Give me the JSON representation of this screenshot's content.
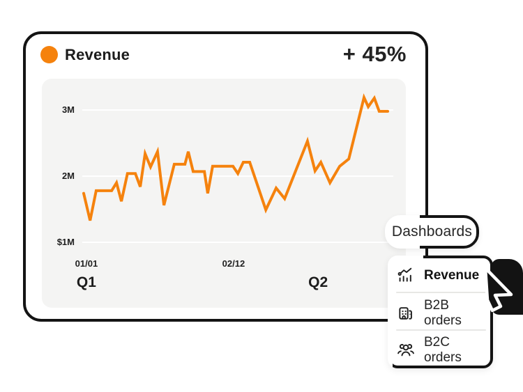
{
  "header": {
    "title": "Revenue",
    "delta": "+ 45%"
  },
  "colors": {
    "accent": "#F5820D",
    "ink": "#1a1a1a",
    "panel": "#f4f4f3",
    "gridline": "#ffffff",
    "card_border": "#141414",
    "separator": "#e7e7e5"
  },
  "chart_data": {
    "type": "line",
    "title": "Revenue",
    "unit": "millions USD",
    "grid": "horizontal only",
    "legend": "none",
    "ylim": [
      1,
      3.3
    ],
    "y_ticks": [
      {
        "label": "3M",
        "value": 3
      },
      {
        "label": "2M",
        "value": 2
      },
      {
        "label": "$1M",
        "value": 1
      }
    ],
    "x_ticks": [
      {
        "label": "01/01",
        "f": 0.009
      },
      {
        "label": "02/12",
        "f": 0.493
      }
    ],
    "quarter_labels": [
      {
        "label": "Q1",
        "f": 0.009
      },
      {
        "label": "Q2",
        "f": 0.771
      }
    ],
    "series": [
      {
        "name": "Revenue",
        "points": [
          [
            0.0,
            1.74
          ],
          [
            0.021,
            1.33
          ],
          [
            0.041,
            1.78
          ],
          [
            0.092,
            1.78
          ],
          [
            0.108,
            1.9
          ],
          [
            0.124,
            1.62
          ],
          [
            0.144,
            2.04
          ],
          [
            0.17,
            2.04
          ],
          [
            0.186,
            1.84
          ],
          [
            0.202,
            2.34
          ],
          [
            0.22,
            2.14
          ],
          [
            0.243,
            2.37
          ],
          [
            0.264,
            1.56
          ],
          [
            0.298,
            2.18
          ],
          [
            0.333,
            2.18
          ],
          [
            0.344,
            2.37
          ],
          [
            0.36,
            2.07
          ],
          [
            0.397,
            2.07
          ],
          [
            0.408,
            1.74
          ],
          [
            0.424,
            2.15
          ],
          [
            0.491,
            2.15
          ],
          [
            0.507,
            2.04
          ],
          [
            0.525,
            2.21
          ],
          [
            0.546,
            2.21
          ],
          [
            0.599,
            1.49
          ],
          [
            0.633,
            1.82
          ],
          [
            0.661,
            1.66
          ],
          [
            0.736,
            2.53
          ],
          [
            0.761,
            2.08
          ],
          [
            0.78,
            2.21
          ],
          [
            0.81,
            1.9
          ],
          [
            0.842,
            2.15
          ],
          [
            0.872,
            2.26
          ],
          [
            0.922,
            3.19
          ],
          [
            0.936,
            3.05
          ],
          [
            0.956,
            3.18
          ],
          [
            0.972,
            2.98
          ],
          [
            1.0,
            2.98
          ]
        ]
      }
    ]
  },
  "dropdown": {
    "trigger": "Dashboards",
    "items": [
      {
        "icon": "trend-chart-icon",
        "label": "Revenue",
        "active": true
      },
      {
        "icon": "building-icon",
        "label": "B2B orders",
        "active": false
      },
      {
        "icon": "people-icon",
        "label": "B2C orders",
        "active": false
      }
    ]
  }
}
